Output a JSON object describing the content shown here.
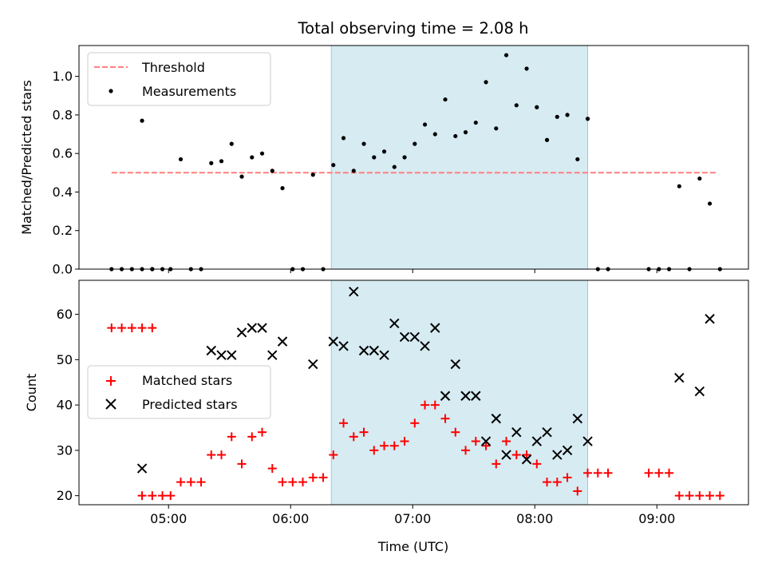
{
  "title": "Total observing time = 2.08 h",
  "colors": {
    "threshold": "#ff7f7f",
    "measurement": "#000000",
    "matched": "#ff0000",
    "predicted": "#000000",
    "shade": "#add8e6"
  },
  "chart_data": [
    {
      "type": "scatter",
      "ylabel": "Matched/Predicted stars",
      "xlabel": "",
      "ylim": [
        0.0,
        1.16
      ],
      "xlim": [
        "04:16",
        "09:45"
      ],
      "x_ticks": [
        "05:00",
        "06:00",
        "07:00",
        "08:00",
        "09:00"
      ],
      "x_tick_labels_visible": false,
      "y_ticks": [
        "0.0",
        "0.2",
        "0.4",
        "0.6",
        "0.8",
        "1.0"
      ],
      "shaded_span": [
        "06:20",
        "08:26"
      ],
      "grid": false,
      "legend_position": "upper left",
      "legend": [
        "Threshold",
        "Measurements"
      ],
      "series": [
        {
          "name": "Threshold",
          "style": "dashed-line",
          "points": [
            [
              "04:32",
              0.5
            ],
            [
              "09:30",
              0.5
            ]
          ]
        },
        {
          "name": "Measurements",
          "style": "dot",
          "points": [
            [
              "04:32",
              0.0
            ],
            [
              "04:37",
              0.0
            ],
            [
              "04:42",
              0.0
            ],
            [
              "04:47",
              0.0
            ],
            [
              "04:52",
              0.0
            ],
            [
              "04:47",
              0.77
            ],
            [
              "04:52",
              0.0
            ],
            [
              "04:57",
              0.0
            ],
            [
              "05:01",
              0.0
            ],
            [
              "05:06",
              0.57
            ],
            [
              "05:11",
              0.0
            ],
            [
              "05:16",
              0.0
            ],
            [
              "05:21",
              0.55
            ],
            [
              "05:26",
              0.56
            ],
            [
              "05:31",
              0.65
            ],
            [
              "05:36",
              0.48
            ],
            [
              "05:41",
              0.58
            ],
            [
              "05:46",
              0.6
            ],
            [
              "05:51",
              0.51
            ],
            [
              "05:56",
              0.42
            ],
            [
              "06:01",
              0.0
            ],
            [
              "06:06",
              0.0
            ],
            [
              "06:11",
              0.49
            ],
            [
              "06:16",
              0.0
            ],
            [
              "06:21",
              0.54
            ],
            [
              "06:26",
              0.68
            ],
            [
              "06:31",
              0.51
            ],
            [
              "06:36",
              0.65
            ],
            [
              "06:41",
              0.58
            ],
            [
              "06:46",
              0.61
            ],
            [
              "06:51",
              0.53
            ],
            [
              "06:56",
              0.58
            ],
            [
              "07:01",
              0.65
            ],
            [
              "07:06",
              0.75
            ],
            [
              "07:11",
              0.7
            ],
            [
              "07:16",
              0.88
            ],
            [
              "07:21",
              0.69
            ],
            [
              "07:26",
              0.71
            ],
            [
              "07:31",
              0.76
            ],
            [
              "07:36",
              0.97
            ],
            [
              "07:41",
              0.73
            ],
            [
              "07:46",
              1.11
            ],
            [
              "07:51",
              0.85
            ],
            [
              "07:56",
              1.04
            ],
            [
              "08:01",
              0.84
            ],
            [
              "08:06",
              0.67
            ],
            [
              "08:11",
              0.79
            ],
            [
              "08:16",
              0.8
            ],
            [
              "08:21",
              0.57
            ],
            [
              "08:26",
              0.78
            ],
            [
              "08:31",
              0.0
            ],
            [
              "08:36",
              0.0
            ],
            [
              "08:56",
              0.0
            ],
            [
              "09:01",
              0.0
            ],
            [
              "09:06",
              0.0
            ],
            [
              "09:11",
              0.43
            ],
            [
              "09:16",
              0.0
            ],
            [
              "09:21",
              0.47
            ],
            [
              "09:26",
              0.34
            ],
            [
              "09:31",
              0.0
            ]
          ]
        }
      ]
    },
    {
      "type": "scatter",
      "ylabel": "Count",
      "xlabel": "Time (UTC)",
      "ylim": [
        18.0,
        67.5
      ],
      "xlim": [
        "04:16",
        "09:45"
      ],
      "x_ticks": [
        "05:00",
        "06:00",
        "07:00",
        "08:00",
        "09:00"
      ],
      "y_ticks": [
        "20",
        "30",
        "40",
        "50",
        "60"
      ],
      "shaded_span": [
        "06:20",
        "08:26"
      ],
      "grid": false,
      "legend_position": "center left",
      "legend": [
        "Matched stars",
        "Predicted stars"
      ],
      "series": [
        {
          "name": "Matched stars",
          "marker": "plus",
          "points": [
            [
              "04:32",
              57
            ],
            [
              "04:37",
              57
            ],
            [
              "04:42",
              57
            ],
            [
              "04:47",
              57
            ],
            [
              "04:52",
              57
            ],
            [
              "04:47",
              20
            ],
            [
              "04:52",
              20
            ],
            [
              "04:57",
              20
            ],
            [
              "05:01",
              20
            ],
            [
              "05:06",
              23
            ],
            [
              "05:11",
              23
            ],
            [
              "05:16",
              23
            ],
            [
              "05:21",
              29
            ],
            [
              "05:26",
              29
            ],
            [
              "05:31",
              33
            ],
            [
              "05:36",
              27
            ],
            [
              "05:41",
              33
            ],
            [
              "05:46",
              34
            ],
            [
              "05:51",
              26
            ],
            [
              "05:56",
              23
            ],
            [
              "06:01",
              23
            ],
            [
              "06:06",
              23
            ],
            [
              "06:11",
              24
            ],
            [
              "06:16",
              24
            ],
            [
              "06:21",
              29
            ],
            [
              "06:26",
              36
            ],
            [
              "06:31",
              33
            ],
            [
              "06:36",
              34
            ],
            [
              "06:41",
              30
            ],
            [
              "06:46",
              31
            ],
            [
              "06:51",
              31
            ],
            [
              "06:56",
              32
            ],
            [
              "07:01",
              36
            ],
            [
              "07:06",
              40
            ],
            [
              "07:11",
              40
            ],
            [
              "07:16",
              37
            ],
            [
              "07:21",
              34
            ],
            [
              "07:26",
              30
            ],
            [
              "07:31",
              32
            ],
            [
              "07:36",
              31
            ],
            [
              "07:41",
              27
            ],
            [
              "07:46",
              32
            ],
            [
              "07:51",
              29
            ],
            [
              "07:56",
              29
            ],
            [
              "08:01",
              27
            ],
            [
              "08:06",
              23
            ],
            [
              "08:11",
              23
            ],
            [
              "08:16",
              24
            ],
            [
              "08:21",
              21
            ],
            [
              "08:26",
              25
            ],
            [
              "08:31",
              25
            ],
            [
              "08:36",
              25
            ],
            [
              "08:56",
              25
            ],
            [
              "09:01",
              25
            ],
            [
              "09:06",
              25
            ],
            [
              "09:11",
              20
            ],
            [
              "09:16",
              20
            ],
            [
              "09:21",
              20
            ],
            [
              "09:26",
              20
            ],
            [
              "09:31",
              20
            ]
          ]
        },
        {
          "name": "Predicted stars",
          "marker": "x",
          "points": [
            [
              "04:47",
              26
            ],
            [
              "05:21",
              52
            ],
            [
              "05:26",
              51
            ],
            [
              "05:31",
              51
            ],
            [
              "05:36",
              56
            ],
            [
              "05:41",
              57
            ],
            [
              "05:46",
              57
            ],
            [
              "05:51",
              51
            ],
            [
              "05:56",
              54
            ],
            [
              "06:11",
              49
            ],
            [
              "06:21",
              54
            ],
            [
              "06:26",
              53
            ],
            [
              "06:31",
              65
            ],
            [
              "06:36",
              52
            ],
            [
              "06:41",
              52
            ],
            [
              "06:46",
              51
            ],
            [
              "06:51",
              58
            ],
            [
              "06:56",
              55
            ],
            [
              "07:01",
              55
            ],
            [
              "07:06",
              53
            ],
            [
              "07:11",
              57
            ],
            [
              "07:16",
              42
            ],
            [
              "07:21",
              49
            ],
            [
              "07:26",
              42
            ],
            [
              "07:31",
              42
            ],
            [
              "07:36",
              32
            ],
            [
              "07:41",
              37
            ],
            [
              "07:46",
              29
            ],
            [
              "07:51",
              34
            ],
            [
              "07:56",
              28
            ],
            [
              "08:01",
              32
            ],
            [
              "08:06",
              34
            ],
            [
              "08:11",
              29
            ],
            [
              "08:16",
              30
            ],
            [
              "08:21",
              37
            ],
            [
              "08:26",
              32
            ],
            [
              "09:11",
              46
            ],
            [
              "09:21",
              43
            ],
            [
              "09:26",
              59
            ]
          ]
        }
      ]
    }
  ]
}
